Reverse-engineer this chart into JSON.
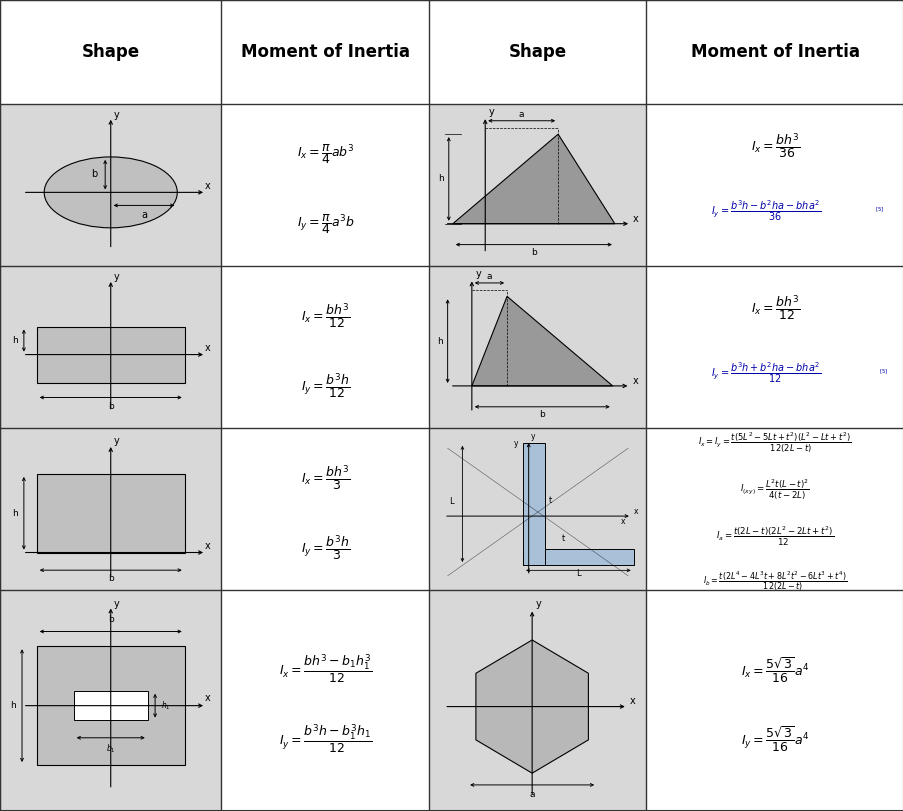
{
  "fig_width": 9.04,
  "fig_height": 8.11,
  "dpi": 100,
  "cols": [
    0.0,
    0.245,
    0.475,
    0.715,
    1.0
  ],
  "rows": [
    1.0,
    0.872,
    0.672,
    0.472,
    0.272,
    0.0
  ],
  "header_fontsize": 12,
  "formula_fontsize": 9,
  "formula_fontsize_small": 7,
  "border_color": "#333333",
  "shape_bg": "#d8d8d8",
  "formula_bg": "#ffffff",
  "header_bg": "#ffffff",
  "gray_shape": "#aaaaaa",
  "blue_shape": "#a8c0d8",
  "link_color": "#0000aa"
}
